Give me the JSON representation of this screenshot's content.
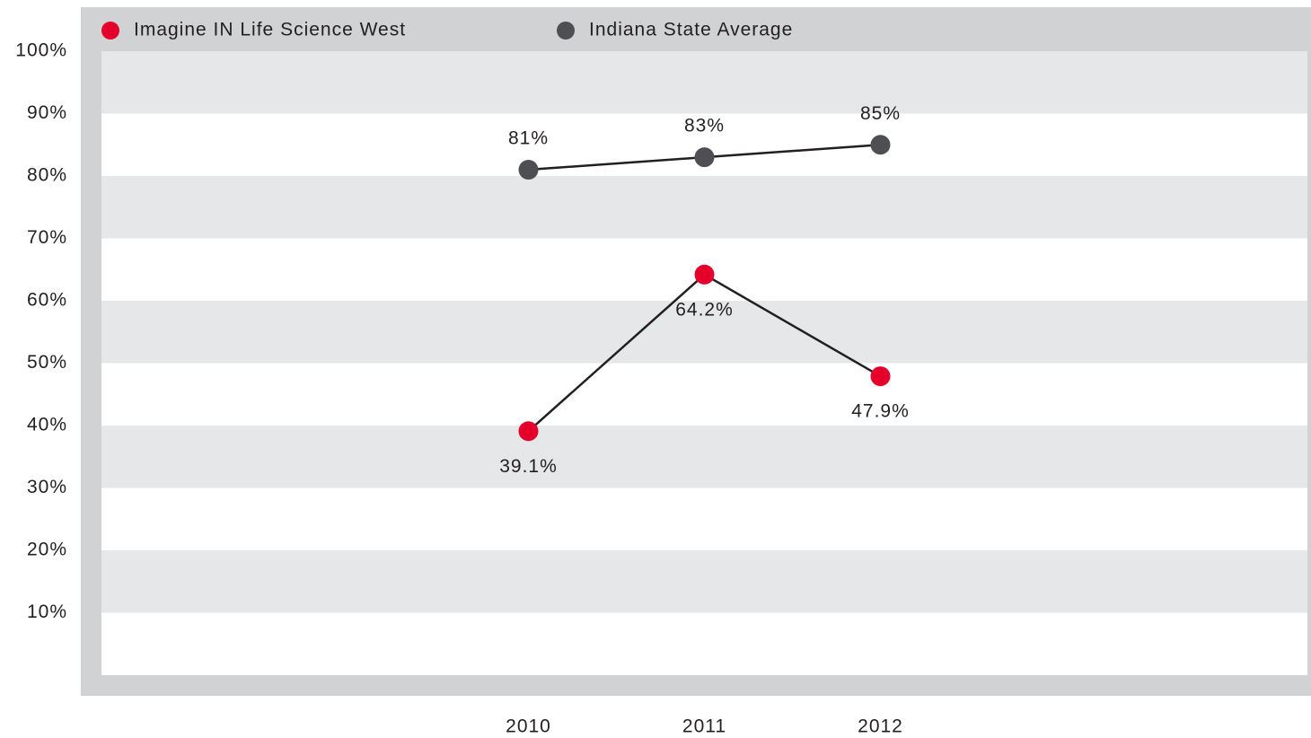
{
  "chart_data": {
    "type": "line",
    "categories": [
      "2010",
      "2011",
      "2012"
    ],
    "series": [
      {
        "name": "Imagine IN Life Science West",
        "color": "#e4002b",
        "values": [
          39.1,
          64.2,
          47.9
        ],
        "value_labels": [
          "39.1%",
          "64.2%",
          "47.9%"
        ]
      },
      {
        "name": "Indiana State Average",
        "color": "#4d4f53",
        "values": [
          81,
          83,
          85
        ],
        "value_labels": [
          "81%",
          "83%",
          "85%"
        ]
      }
    ],
    "ylim": [
      0,
      100
    ],
    "yticks": [
      {
        "value": 10,
        "label": "10%"
      },
      {
        "value": 20,
        "label": "20%"
      },
      {
        "value": 30,
        "label": "30%"
      },
      {
        "value": 40,
        "label": "40%"
      },
      {
        "value": 50,
        "label": "50%"
      },
      {
        "value": 60,
        "label": "60%"
      },
      {
        "value": 70,
        "label": "70%"
      },
      {
        "value": 80,
        "label": "80%"
      },
      {
        "value": 90,
        "label": "90%"
      },
      {
        "value": 100,
        "label": "100%"
      }
    ],
    "grid": true,
    "legend": "top-left"
  }
}
